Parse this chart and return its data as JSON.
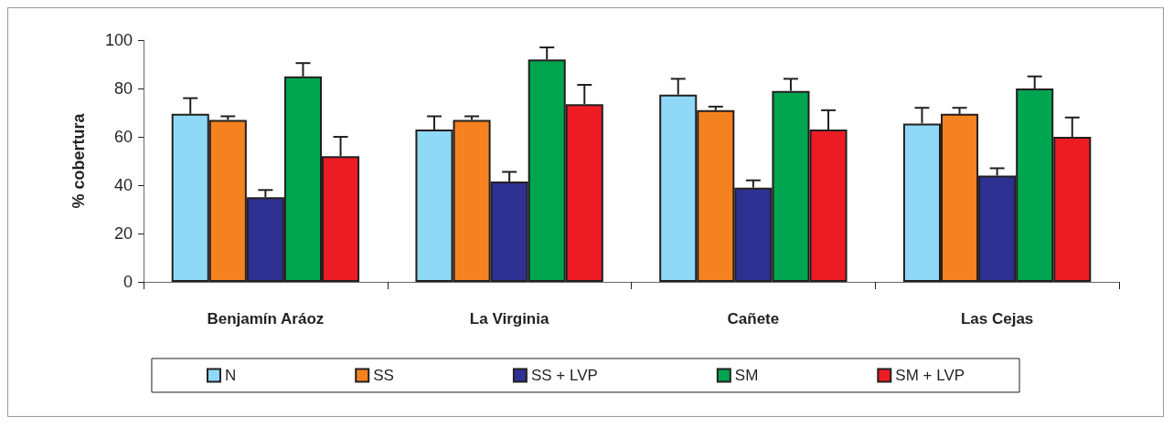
{
  "chart_data": {
    "type": "bar",
    "ylabel": "% cobertura",
    "categories": [
      "Benjamín Aráoz",
      "La Virginia",
      "Cañete",
      "Las Cejas"
    ],
    "series": [
      {
        "name": "N",
        "color": "#8fd8f6",
        "values": [
          69.5,
          63,
          77.5,
          65.5
        ],
        "errors": [
          [
            69.5,
            76
          ],
          [
            63,
            68.5
          ],
          [
            77.5,
            84
          ],
          [
            65.5,
            72
          ]
        ]
      },
      {
        "name": "SS",
        "color": "#f58220",
        "values": [
          67,
          67,
          71,
          69.5
        ],
        "errors": [
          [
            67,
            68.5
          ],
          [
            67,
            68.5
          ],
          [
            71,
            72.5
          ],
          [
            69.5,
            72
          ]
        ]
      },
      {
        "name": "SS + LVP",
        "color": "#2e3192",
        "values": [
          35,
          41.5,
          39,
          44
        ],
        "errors": [
          [
            35,
            38
          ],
          [
            41.5,
            45.5
          ],
          [
            39,
            42
          ],
          [
            44,
            47
          ]
        ]
      },
      {
        "name": "SM",
        "color": "#00a550",
        "values": [
          85,
          92,
          79,
          80
        ],
        "errors": [
          [
            85,
            90.5
          ],
          [
            92,
            97
          ],
          [
            79,
            84
          ],
          [
            80,
            85
          ]
        ]
      },
      {
        "name": "SM + LVP",
        "color": "#ed1c24",
        "values": [
          52,
          73.5,
          63,
          60
        ],
        "errors": [
          [
            52,
            60
          ],
          [
            73.5,
            81.5
          ],
          [
            63,
            71
          ],
          [
            60,
            68
          ]
        ]
      }
    ],
    "ylim": [
      0,
      100
    ],
    "yticks": [
      0,
      20,
      40,
      60,
      80,
      100
    ],
    "grid": false,
    "legend": "bottom"
  }
}
